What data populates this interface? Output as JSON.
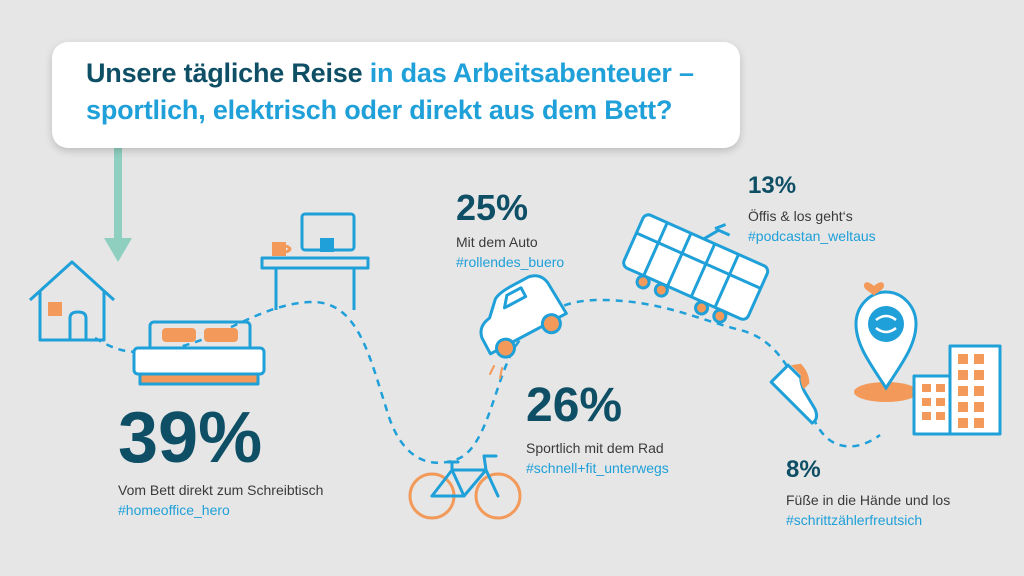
{
  "title": {
    "part1_strong": "Unsere tägliche Reise",
    "part1_rest": " in das Arbeitsabenteuer –",
    "line2": "sportlich, elektrisch oder direkt aus dem Bett?"
  },
  "stats": {
    "bett": {
      "percent": "39%",
      "caption": "Vom Bett direkt zum Schreibtisch",
      "hashtag": "#homeoffice_hero"
    },
    "rad": {
      "percent": "26%",
      "caption": "Sportlich mit dem Rad",
      "hashtag": "#schnell+fit_unterwegs"
    },
    "auto": {
      "percent": "25%",
      "caption": "Mit dem Auto",
      "hashtag": "#rollendes_buero"
    },
    "oeffis": {
      "percent": "13%",
      "caption": "Öffis & los geht‘s",
      "hashtag": "#podcastan_weltaus"
    },
    "fuss": {
      "percent": "8%",
      "caption": "Füße in die Hände und los",
      "hashtag": "#schrittzählerfreutsich"
    }
  },
  "colors": {
    "background": "#e6e6e6",
    "dark_teal": "#0e4f66",
    "blue": "#1fa0d8",
    "orange": "#f39a5a",
    "arrow_green": "#8fcfc0"
  },
  "icons": [
    "house-icon",
    "bed-icon",
    "desk-icon",
    "bicycle-icon",
    "car-icon",
    "tram-icon",
    "sneaker-icon",
    "location-pin-icon",
    "buildings-icon",
    "heart-icon",
    "arrow-down-icon"
  ]
}
